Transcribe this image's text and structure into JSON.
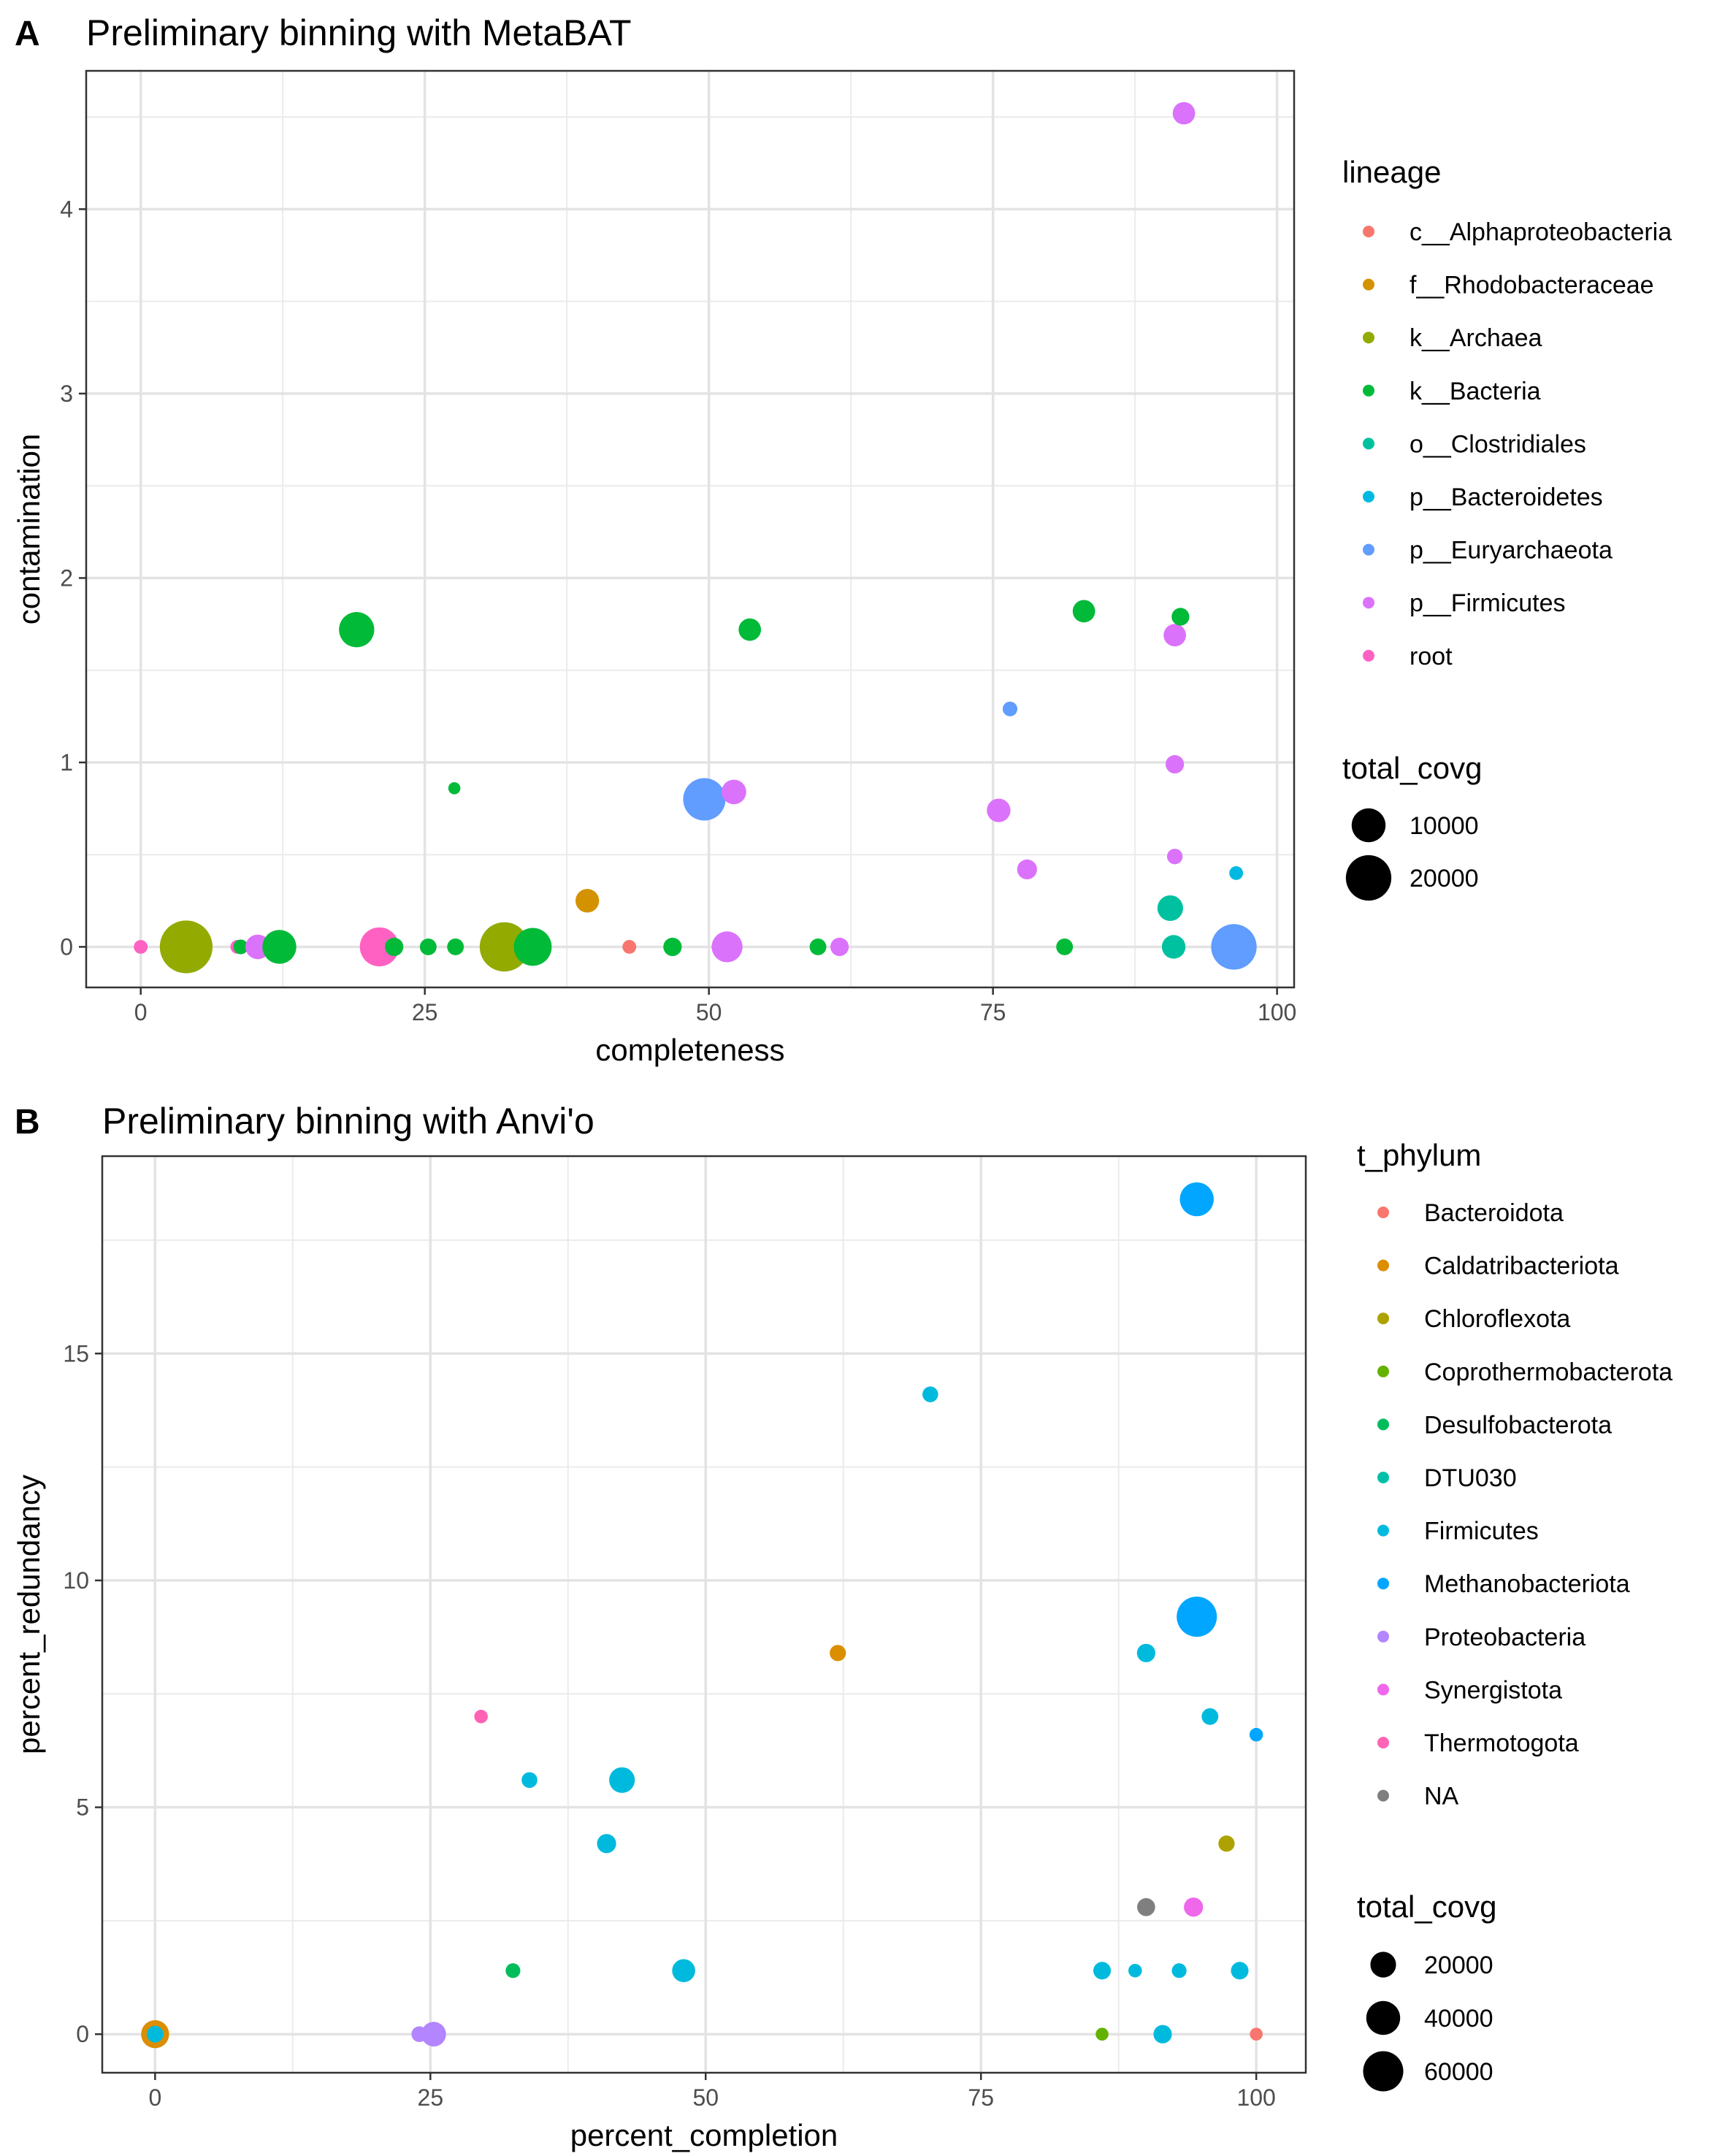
{
  "chart_data": [
    {
      "panel_label": "A",
      "type": "scatter",
      "title": "Preliminary binning with MetaBAT",
      "xlabel": "completeness",
      "ylabel": "contamination",
      "xlim": [
        -4.8,
        101.5
      ],
      "ylim": [
        -0.22,
        4.75
      ],
      "xticks": [
        0,
        25,
        50,
        75,
        100
      ],
      "yticks": [
        0,
        1,
        2,
        3,
        4
      ],
      "grid": true,
      "legend_color": {
        "title": "lineage",
        "entries": [
          {
            "label": "c__Alphaproteobacteria",
            "color": "#F8766D"
          },
          {
            "label": "f__Rhodobacteraceae",
            "color": "#D39200"
          },
          {
            "label": "k__Archaea",
            "color": "#93AA00"
          },
          {
            "label": "k__Bacteria",
            "color": "#00BA38"
          },
          {
            "label": "o__Clostridiales",
            "color": "#00C19F"
          },
          {
            "label": "p__Bacteroidetes",
            "color": "#00B9E3"
          },
          {
            "label": "p__Euryarchaeota",
            "color": "#619CFF"
          },
          {
            "label": "p__Firmicutes",
            "color": "#DB72FB"
          },
          {
            "label": "root",
            "color": "#FF61C3"
          }
        ]
      },
      "legend_size": {
        "title": "total_covg",
        "entries": [
          {
            "label": "10000",
            "value": 10000
          },
          {
            "label": "20000",
            "value": 20000
          }
        ]
      },
      "points": [
        {
          "x": 0,
          "y": 0,
          "size": 800,
          "group": "root"
        },
        {
          "x": 4,
          "y": 0,
          "size": 28000,
          "group": "k__Archaea"
        },
        {
          "x": 8.5,
          "y": 0,
          "size": 800,
          "group": "root"
        },
        {
          "x": 8.8,
          "y": 0,
          "size": 1000,
          "group": "k__Bacteria"
        },
        {
          "x": 10.3,
          "y": 0,
          "size": 4500,
          "group": "p__Firmicutes"
        },
        {
          "x": 12.2,
          "y": 0,
          "size": 10000,
          "group": "k__Bacteria"
        },
        {
          "x": 21,
          "y": 0,
          "size": 14000,
          "group": "root"
        },
        {
          "x": 22.3,
          "y": 0,
          "size": 2000,
          "group": "k__Bacteria"
        },
        {
          "x": 25.3,
          "y": 0,
          "size": 1500,
          "group": "k__Bacteria"
        },
        {
          "x": 27.7,
          "y": 0,
          "size": 1500,
          "group": "k__Bacteria"
        },
        {
          "x": 32,
          "y": 0,
          "size": 24000,
          "group": "k__Archaea"
        },
        {
          "x": 34.5,
          "y": 0,
          "size": 13000,
          "group": "k__Bacteria"
        },
        {
          "x": 43,
          "y": 0,
          "size": 800,
          "group": "c__Alphaproteobacteria"
        },
        {
          "x": 46.8,
          "y": 0,
          "size": 2000,
          "group": "k__Bacteria"
        },
        {
          "x": 51.6,
          "y": 0,
          "size": 8000,
          "group": "p__Firmicutes"
        },
        {
          "x": 59.6,
          "y": 0,
          "size": 1500,
          "group": "k__Bacteria"
        },
        {
          "x": 61.5,
          "y": 0,
          "size": 2000,
          "group": "p__Firmicutes"
        },
        {
          "x": 81.3,
          "y": 0,
          "size": 1500,
          "group": "k__Bacteria"
        },
        {
          "x": 90.9,
          "y": 0,
          "size": 4000,
          "group": "o__Clostridiales"
        },
        {
          "x": 96.2,
          "y": 0,
          "size": 20000,
          "group": "p__Euryarchaeota"
        },
        {
          "x": 39.3,
          "y": 0.25,
          "size": 4000,
          "group": "f__Rhodobacteraceae"
        },
        {
          "x": 90.6,
          "y": 0.21,
          "size": 5000,
          "group": "o__Clostridiales"
        },
        {
          "x": 96.4,
          "y": 0.4,
          "size": 800,
          "group": "p__Bacteroidetes"
        },
        {
          "x": 78,
          "y": 0.42,
          "size": 2500,
          "group": "p__Firmicutes"
        },
        {
          "x": 91,
          "y": 0.49,
          "size": 1200,
          "group": "p__Firmicutes"
        },
        {
          "x": 75.5,
          "y": 0.74,
          "size": 4000,
          "group": "p__Firmicutes"
        },
        {
          "x": 49.6,
          "y": 0.8,
          "size": 17000,
          "group": "p__Euryarchaeota"
        },
        {
          "x": 52.2,
          "y": 0.84,
          "size": 4500,
          "group": "p__Firmicutes"
        },
        {
          "x": 27.6,
          "y": 0.86,
          "size": 500,
          "group": "k__Bacteria"
        },
        {
          "x": 91,
          "y": 0.99,
          "size": 2000,
          "group": "p__Firmicutes"
        },
        {
          "x": 76.5,
          "y": 1.29,
          "size": 1000,
          "group": "p__Euryarchaeota"
        },
        {
          "x": 19,
          "y": 1.72,
          "size": 11000,
          "group": "k__Bacteria"
        },
        {
          "x": 53.6,
          "y": 1.72,
          "size": 3500,
          "group": "k__Bacteria"
        },
        {
          "x": 91,
          "y": 1.69,
          "size": 3500,
          "group": "p__Firmicutes"
        },
        {
          "x": 83,
          "y": 1.82,
          "size": 3500,
          "group": "k__Bacteria"
        },
        {
          "x": 91.5,
          "y": 1.79,
          "size": 1800,
          "group": "k__Bacteria"
        },
        {
          "x": 91.8,
          "y": 4.52,
          "size": 3500,
          "group": "p__Firmicutes"
        }
      ]
    },
    {
      "panel_label": "B",
      "type": "scatter",
      "title": "Preliminary binning with Anvi'o",
      "xlabel": "percent_completion",
      "ylabel": "percent_redundancy",
      "xlim": [
        -4.8,
        104.5
      ],
      "ylim": [
        -0.85,
        19.35
      ],
      "xticks": [
        0,
        25,
        50,
        75,
        100
      ],
      "yticks": [
        0,
        5,
        10,
        15
      ],
      "grid": true,
      "legend_color": {
        "title": "t_phylum",
        "entries": [
          {
            "label": "Bacteroidota",
            "color": "#F8766D"
          },
          {
            "label": "Caldatribacteriota",
            "color": "#DB8E00"
          },
          {
            "label": "Chloroflexota",
            "color": "#AEA200"
          },
          {
            "label": "Coprothermobacterota",
            "color": "#64B200"
          },
          {
            "label": "Desulfobacterota",
            "color": "#00BD5C"
          },
          {
            "label": "DTU030",
            "color": "#00C1A7"
          },
          {
            "label": "Firmicutes",
            "color": "#00BADE"
          },
          {
            "label": "Methanobacteriota",
            "color": "#00A6FF"
          },
          {
            "label": "Proteobacteria",
            "color": "#B385FF"
          },
          {
            "label": "Synergistota",
            "color": "#EF67EB"
          },
          {
            "label": "Thermotogota",
            "color": "#FF63B6"
          },
          {
            "label": "NA",
            "color": "#7F7F7F"
          }
        ]
      },
      "legend_size": {
        "title": "total_covg",
        "entries": [
          {
            "label": "20000",
            "value": 20000
          },
          {
            "label": "40000",
            "value": 40000
          },
          {
            "label": "60000",
            "value": 60000
          }
        ]
      },
      "points": [
        {
          "x": 0,
          "y": 0,
          "size": 25000,
          "group": "Caldatribacteriota"
        },
        {
          "x": 0,
          "y": 0,
          "size": 6000,
          "group": "Firmicutes"
        },
        {
          "x": 24,
          "y": 0,
          "size": 5000,
          "group": "Proteobacteria"
        },
        {
          "x": 25.3,
          "y": 0,
          "size": 18000,
          "group": "Proteobacteria"
        },
        {
          "x": 86,
          "y": 0,
          "size": 2500,
          "group": "Coprothermobacterota"
        },
        {
          "x": 91.5,
          "y": 0,
          "size": 8000,
          "group": "Firmicutes"
        },
        {
          "x": 100,
          "y": 0,
          "size": 2500,
          "group": "Bacteroidota"
        },
        {
          "x": 32.5,
          "y": 1.4,
          "size": 4000,
          "group": "Desulfobacterota"
        },
        {
          "x": 48,
          "y": 1.4,
          "size": 15000,
          "group": "Firmicutes"
        },
        {
          "x": 86,
          "y": 1.4,
          "size": 7000,
          "group": "Firmicutes"
        },
        {
          "x": 89,
          "y": 1.4,
          "size": 3000,
          "group": "Firmicutes"
        },
        {
          "x": 93,
          "y": 1.4,
          "size": 4000,
          "group": "Firmicutes"
        },
        {
          "x": 98.5,
          "y": 1.4,
          "size": 7000,
          "group": "Firmicutes"
        },
        {
          "x": 90,
          "y": 2.8,
          "size": 7500,
          "group": "NA"
        },
        {
          "x": 94.3,
          "y": 2.8,
          "size": 9000,
          "group": "Synergistota"
        },
        {
          "x": 97.3,
          "y": 4.2,
          "size": 5500,
          "group": "Chloroflexota"
        },
        {
          "x": 41,
          "y": 4.2,
          "size": 9000,
          "group": "Firmicutes"
        },
        {
          "x": 34,
          "y": 5.6,
          "size": 5000,
          "group": "Firmicutes"
        },
        {
          "x": 42.4,
          "y": 5.6,
          "size": 20000,
          "group": "Firmicutes"
        },
        {
          "x": 100,
          "y": 6.6,
          "size": 3000,
          "group": "Methanobacteriota"
        },
        {
          "x": 29.6,
          "y": 7,
          "size": 3000,
          "group": "Thermotogota"
        },
        {
          "x": 95.8,
          "y": 7,
          "size": 6000,
          "group": "Firmicutes"
        },
        {
          "x": 62,
          "y": 8.4,
          "size": 5500,
          "group": "Caldatribacteriota"
        },
        {
          "x": 90,
          "y": 8.4,
          "size": 8000,
          "group": "Firmicutes"
        },
        {
          "x": 94.6,
          "y": 9.2,
          "size": 60000,
          "group": "Methanobacteriota"
        },
        {
          "x": 70.4,
          "y": 14.1,
          "size": 5000,
          "group": "Firmicutes"
        },
        {
          "x": 94.6,
          "y": 18.4,
          "size": 40000,
          "group": "Methanobacteriota"
        }
      ]
    }
  ]
}
